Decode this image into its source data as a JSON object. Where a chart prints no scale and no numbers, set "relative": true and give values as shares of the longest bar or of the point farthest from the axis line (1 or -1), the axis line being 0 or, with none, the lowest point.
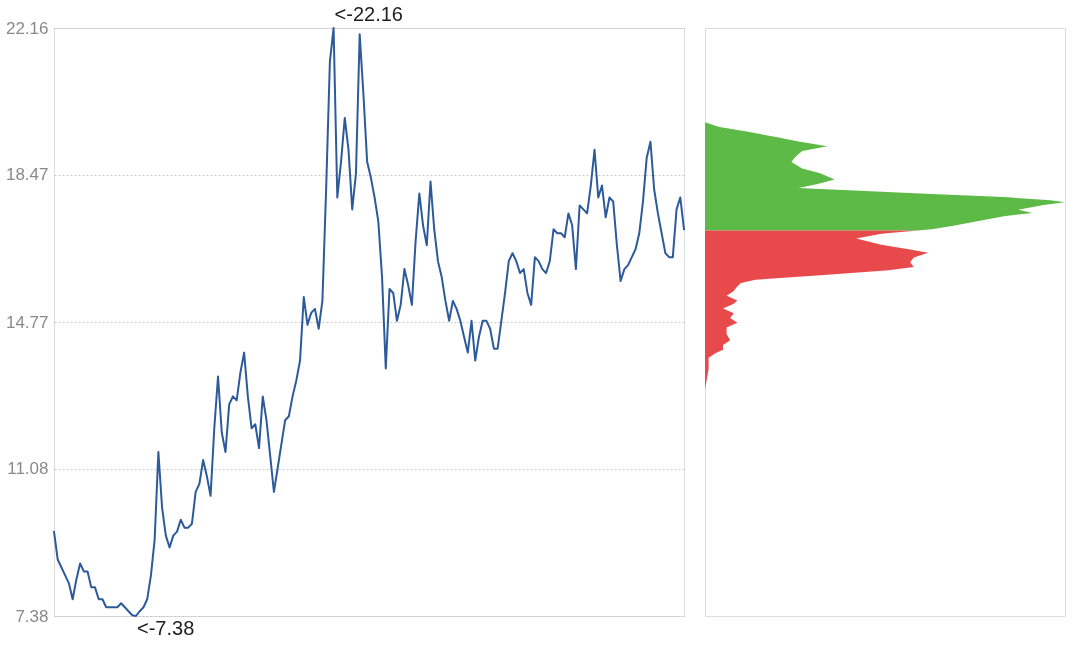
{
  "chart_data": [
    {
      "type": "line",
      "categories": [
        null,
        null,
        null,
        null,
        null,
        null,
        null,
        null,
        null,
        null,
        null,
        null,
        null,
        null,
        null,
        null,
        null,
        null,
        null,
        null,
        null,
        null,
        null,
        null,
        null,
        null,
        null,
        null,
        null,
        null,
        null,
        null,
        null,
        null,
        null,
        null,
        null,
        null,
        null,
        null,
        null,
        null,
        null,
        null,
        null,
        null,
        null,
        null,
        null,
        null,
        null,
        null,
        null,
        null,
        null,
        null,
        null,
        null,
        null,
        null,
        null,
        null,
        null,
        null,
        null,
        null,
        null,
        null,
        null,
        null,
        null,
        null,
        null,
        null,
        null,
        null,
        null,
        null,
        null,
        null,
        null,
        null,
        null,
        null,
        null,
        null,
        null,
        null,
        null,
        null,
        null,
        null,
        null,
        null,
        null,
        null,
        null,
        null,
        null,
        null,
        null,
        null,
        null,
        null,
        null,
        null,
        null,
        null,
        null,
        null,
        null,
        null,
        null,
        null,
        null,
        null,
        null,
        null,
        null,
        null,
        null,
        null,
        null,
        null,
        null,
        null,
        null,
        null,
        null,
        null,
        null,
        null,
        null,
        null,
        null,
        null,
        null,
        null,
        null,
        null,
        null,
        null,
        null,
        null,
        null,
        null,
        null,
        null,
        null,
        null,
        null,
        null,
        null,
        null,
        null,
        null,
        null,
        null,
        null,
        null,
        null,
        null,
        null,
        null,
        null,
        null,
        null,
        null,
        null,
        null
      ],
      "series": [
        {
          "color": "#2d5a9b",
          "values": [
            9.5,
            8.8,
            8.6,
            8.4,
            8.2,
            7.8,
            8.3,
            8.7,
            8.5,
            8.5,
            8.1,
            8.1,
            7.8,
            7.8,
            7.6,
            7.6,
            7.6,
            7.6,
            7.7,
            7.6,
            7.5,
            7.4,
            7.38,
            7.5,
            7.6,
            7.8,
            8.4,
            9.3,
            11.5,
            10.1,
            9.4,
            9.1,
            9.4,
            9.5,
            9.8,
            9.6,
            9.6,
            9.7,
            10.5,
            10.7,
            11.3,
            10.9,
            10.4,
            12.1,
            13.4,
            12.0,
            11.5,
            12.7,
            12.9,
            12.8,
            13.5,
            14.0,
            12.9,
            12.1,
            12.2,
            11.6,
            12.9,
            12.3,
            11.4,
            10.5,
            11.1,
            11.7,
            12.3,
            12.4,
            12.9,
            13.3,
            13.8,
            15.4,
            14.7,
            15.0,
            15.1,
            14.6,
            15.3,
            18.1,
            21.3,
            22.16,
            17.9,
            18.8,
            19.9,
            19.1,
            17.6,
            18.5,
            22.0,
            20.5,
            18.8,
            18.4,
            17.9,
            17.3,
            15.9,
            13.6,
            15.6,
            15.5,
            14.8,
            15.2,
            16.1,
            15.7,
            15.2,
            16.8,
            18.0,
            17.2,
            16.7,
            18.3,
            17.1,
            16.3,
            15.9,
            15.3,
            14.8,
            15.3,
            15.1,
            14.8,
            14.4,
            14.0,
            14.8,
            13.8,
            14.4,
            14.8,
            14.8,
            14.6,
            14.1,
            14.1,
            14.8,
            15.5,
            16.3,
            16.5,
            16.3,
            16.0,
            16.1,
            15.5,
            15.2,
            16.4,
            16.3,
            16.1,
            16.0,
            16.3,
            17.1,
            17.0,
            17.0,
            16.9,
            17.5,
            17.2,
            16.1,
            17.7,
            17.6,
            17.5,
            18.2,
            19.1,
            17.9,
            18.2,
            17.4,
            17.9,
            17.8,
            16.7,
            15.8,
            16.1,
            16.2,
            16.4,
            16.6,
            17.0,
            17.8,
            18.9,
            19.3,
            18.1,
            17.5,
            17.0,
            16.5,
            16.4,
            16.4,
            17.6,
            17.9,
            17.1
          ]
        }
      ],
      "ylim": [
        7.38,
        22.16
      ],
      "yticks": [
        7.38,
        11.08,
        14.77,
        18.47,
        22.16
      ],
      "grid": "y",
      "tick_labels": "y",
      "annotations": [
        "<-22.16",
        "<-7.38"
      ]
    },
    {
      "type": "area",
      "orientation": "horizontal",
      "relative": true,
      "ylim": [
        7.38,
        22.16
      ],
      "tick_labels": false,
      "series": [
        {
          "color": "#5dba47",
          "x": [
            17.07,
            17.1,
            17.19,
            17.31,
            17.43,
            17.51,
            17.59,
            17.71,
            17.78,
            17.83,
            17.91,
            17.99,
            18.07,
            18.14,
            18.23,
            18.35,
            18.51,
            18.63,
            18.79,
            18.91,
            19.07,
            19.19,
            19.31,
            19.43,
            19.55,
            19.67,
            19.79
          ],
          "values": [
            0.59,
            0.63,
            0.69,
            0.76,
            0.83,
            0.91,
            0.87,
            0.94,
            1,
            0.96,
            0.83,
            0.63,
            0.43,
            0.26,
            0.31,
            0.36,
            0.32,
            0.27,
            0.24,
            0.25,
            0.27,
            0.34,
            0.26,
            0.19,
            0.12,
            0.04,
            0
          ]
        },
        {
          "color": "#e84a4c",
          "x": [
            13.07,
            13.59,
            13.75,
            13.87,
            13.99,
            14.07,
            14.19,
            14.31,
            14.47,
            14.63,
            14.75,
            14.87,
            14.99,
            15.11,
            15.23,
            15.31,
            15.43,
            15.55,
            15.67,
            15.75,
            15.83,
            15.95,
            16.07,
            16.15,
            16.27,
            16.39,
            16.51,
            16.59,
            16.71,
            16.87,
            16.99,
            17.07
          ],
          "values": [
            0,
            0.01,
            0.01,
            0.01,
            0.03,
            0.05,
            0.05,
            0.07,
            0.06,
            0.06,
            0.09,
            0.07,
            0.08,
            0.05,
            0.08,
            0.09,
            0.06,
            0.08,
            0.09,
            0.1,
            0.14,
            0.33,
            0.51,
            0.58,
            0.57,
            0.58,
            0.62,
            0.57,
            0.49,
            0.42,
            0.49,
            0.59
          ]
        }
      ]
    }
  ]
}
